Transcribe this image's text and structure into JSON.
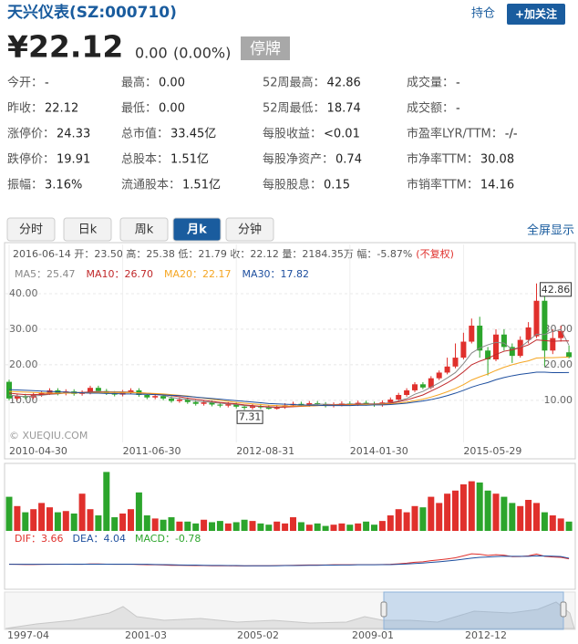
{
  "header": {
    "title": "天兴仪表(SZ:000710)",
    "hold": "持仓",
    "follow": "+加关注",
    "price": "¥22.12",
    "change": "0.00",
    "change_pct": "(0.00%)",
    "status": "停牌"
  },
  "stats": [
    [
      {
        "label": "今开：",
        "value": "-"
      },
      {
        "label": "最高：",
        "value": "0.00"
      },
      {
        "label": "52周最高：",
        "value": "42.86"
      },
      {
        "label": "成交量：",
        "value": "-"
      }
    ],
    [
      {
        "label": "昨收：",
        "value": "22.12"
      },
      {
        "label": "最低：",
        "value": "0.00"
      },
      {
        "label": "52周最低：",
        "value": "18.74"
      },
      {
        "label": "成交额：",
        "value": "-"
      }
    ],
    [
      {
        "label": "涨停价：",
        "value": "24.33"
      },
      {
        "label": "总市值：",
        "value": "33.45亿"
      },
      {
        "label": "每股收益：",
        "value": "<0.01"
      },
      {
        "label": "市盈率LYR/TTM：",
        "value": "-/-"
      }
    ],
    [
      {
        "label": "跌停价：",
        "value": "19.91"
      },
      {
        "label": "总股本：",
        "value": "1.51亿"
      },
      {
        "label": "每股净资产：",
        "value": "0.74"
      },
      {
        "label": "市净率TTM：",
        "value": "30.08"
      }
    ],
    [
      {
        "label": "振幅：",
        "value": "3.16%"
      },
      {
        "label": "流通股本：",
        "value": "1.51亿"
      },
      {
        "label": "每股股息：",
        "value": "0.15"
      },
      {
        "label": "市销率TTM：",
        "value": "14.16"
      }
    ]
  ],
  "tabs": {
    "items": [
      "分时",
      "日k",
      "周k",
      "月k",
      "分钟"
    ],
    "active": 3,
    "fullscreen": "全屏显示"
  },
  "chart_data": [
    {
      "type": "candlestick",
      "quote": "2016-06-14 开：23.50 高：25.38 低：21.79 收：22.12 量：2184.35万 幅：-5.87%",
      "adjust": "(不复权)",
      "watermark": "© XUEQIU.COM",
      "up_color": "#e0302c",
      "down_color": "#2ca52c",
      "categories": [
        "2010-04-30",
        null,
        null,
        null,
        null,
        null,
        null,
        null,
        null,
        null,
        null,
        null,
        null,
        null,
        "2011-06-30",
        null,
        null,
        null,
        null,
        null,
        null,
        null,
        null,
        null,
        null,
        null,
        null,
        null,
        "2012-08-31",
        null,
        null,
        null,
        null,
        null,
        null,
        null,
        null,
        null,
        null,
        null,
        null,
        null,
        "2014-01-30",
        null,
        null,
        null,
        null,
        null,
        null,
        null,
        null,
        null,
        null,
        null,
        null,
        null,
        "2015-05-29",
        null,
        null,
        null,
        null,
        null,
        null,
        null,
        null,
        null,
        null,
        null,
        null,
        null
      ],
      "open": [
        15.2,
        10.5,
        11.2,
        10.8,
        11.5,
        12.0,
        12.8,
        11.9,
        12.5,
        11.8,
        12.2,
        13.5,
        12.6,
        12.0,
        11.6,
        12.3,
        12.8,
        11.5,
        10.8,
        11.2,
        10.5,
        9.8,
        10.2,
        9.5,
        9.0,
        9.4,
        8.8,
        8.5,
        8.9,
        8.2,
        7.9,
        8.4,
        8.0,
        7.6,
        8.1,
        8.6,
        9.0,
        8.7,
        9.2,
        8.9,
        8.5,
        8.8,
        9.1,
        8.9,
        9.3,
        9.0,
        8.7,
        9.4,
        10.2,
        11.5,
        12.8,
        14.5,
        13.6,
        16.2,
        17.8,
        19.5,
        22.0,
        26.5,
        31.0,
        24.0,
        21.5,
        28.5,
        25.0,
        22.5,
        27.0,
        28.0,
        38.0,
        24.0,
        27.5,
        23.5
      ],
      "high": [
        15.8,
        11.8,
        11.8,
        12.1,
        12.6,
        13.4,
        13.4,
        13.1,
        13.1,
        12.8,
        14.1,
        14.1,
        13.2,
        12.6,
        12.9,
        13.4,
        13.4,
        12.1,
        11.8,
        11.8,
        11.1,
        10.8,
        10.8,
        10.1,
        10.0,
        10.0,
        9.4,
        9.5,
        9.5,
        8.8,
        9.0,
        9.0,
        8.6,
        8.7,
        9.2,
        9.6,
        9.6,
        9.8,
        9.8,
        9.5,
        9.4,
        9.7,
        9.7,
        9.9,
        9.9,
        9.6,
        10.0,
        10.8,
        12.1,
        13.4,
        15.1,
        15.1,
        16.8,
        18.4,
        22.0,
        26.0,
        29.0,
        33.0,
        33.5,
        25.0,
        30.0,
        30.0,
        26.0,
        28.0,
        32.0,
        42.86,
        40.0,
        30.0,
        31.0,
        25.38
      ],
      "low": [
        10.0,
        10.0,
        10.3,
        10.3,
        11.0,
        11.5,
        11.4,
        11.4,
        11.3,
        11.3,
        11.7,
        12.1,
        11.5,
        11.1,
        11.1,
        11.8,
        11.0,
        10.3,
        10.3,
        10.0,
        9.3,
        9.3,
        9.0,
        8.5,
        8.5,
        8.3,
        8.0,
        8.0,
        7.7,
        7.31,
        7.4,
        7.5,
        7.4,
        7.4,
        7.6,
        8.1,
        8.2,
        8.2,
        8.4,
        8.0,
        8.0,
        8.3,
        8.4,
        8.4,
        8.5,
        8.2,
        8.2,
        8.9,
        9.7,
        11.0,
        12.3,
        13.1,
        13.1,
        15.7,
        17.3,
        19.0,
        21.5,
        26.0,
        22.0,
        17.0,
        21.0,
        24.0,
        20.5,
        22.0,
        26.0,
        27.5,
        19.5,
        23.0,
        26.5,
        21.79
      ],
      "close": [
        10.5,
        11.2,
        10.8,
        11.5,
        12.0,
        12.8,
        11.9,
        12.5,
        11.8,
        12.2,
        13.5,
        12.6,
        12.0,
        11.6,
        12.3,
        12.8,
        11.5,
        10.8,
        11.2,
        10.5,
        9.8,
        10.2,
        9.5,
        9.0,
        9.4,
        8.8,
        8.5,
        8.9,
        8.2,
        7.9,
        8.4,
        8.0,
        7.6,
        8.1,
        8.6,
        9.0,
        8.7,
        9.2,
        8.9,
        8.5,
        8.8,
        9.1,
        8.9,
        9.3,
        9.0,
        8.7,
        9.4,
        10.2,
        11.5,
        12.8,
        14.5,
        13.6,
        16.2,
        17.8,
        19.5,
        22.0,
        26.5,
        31.0,
        24.0,
        21.5,
        28.5,
        25.0,
        22.5,
        27.0,
        30.5,
        38.0,
        24.0,
        27.5,
        29.5,
        22.12
      ],
      "series": [
        {
          "name": "MA5：25.47",
          "color": "#888888",
          "values": [
            11.5,
            11.2,
            11.0,
            11.2,
            11.4,
            11.7,
            11.8,
            12.1,
            12.2,
            12.2,
            12.4,
            12.5,
            12.4,
            12.4,
            12.4,
            12.3,
            12.0,
            11.8,
            11.7,
            11.4,
            10.8,
            10.5,
            10.2,
            9.8,
            9.6,
            9.4,
            9.2,
            9.0,
            8.8,
            8.5,
            8.4,
            8.3,
            8.0,
            8.0,
            8.1,
            8.3,
            8.6,
            8.7,
            8.9,
            8.9,
            8.8,
            8.9,
            8.9,
            9.0,
            9.0,
            9.0,
            9.1,
            9.3,
            9.8,
            10.5,
            11.7,
            12.5,
            13.7,
            14.9,
            16.3,
            17.8,
            20.3,
            23.3,
            24.7,
            25.6,
            26.3,
            26.1,
            24.3,
            24.9,
            26.7,
            28.6,
            28.5,
            29.4,
            29.9,
            25.47
          ]
        },
        {
          "name": "MA10：26.70",
          "color": "#c0282a",
          "values": [
            12,
            11.8,
            11.6,
            11.6,
            11.7,
            11.8,
            11.9,
            12.0,
            12.1,
            12.2,
            12.3,
            12.3,
            12.3,
            12.2,
            12.2,
            12.2,
            12.1,
            12.0,
            11.8,
            11.6,
            11.3,
            11.0,
            10.6,
            10.3,
            10.0,
            9.7,
            9.4,
            9.2,
            9.0,
            8.7,
            8.5,
            8.3,
            8.2,
            8.1,
            8.1,
            8.2,
            8.3,
            8.4,
            8.5,
            8.6,
            8.7,
            8.8,
            8.8,
            8.9,
            8.9,
            8.9,
            9.0,
            9.2,
            9.6,
            10.1,
            10.8,
            11.5,
            12.6,
            13.7,
            14.9,
            16.3,
            18.0,
            20.0,
            21.0,
            21.8,
            22.9,
            23.8,
            24.2,
            24.8,
            25.6,
            27.0,
            26.8,
            26.6,
            26.7,
            26.7
          ]
        },
        {
          "name": "MA20：22.17",
          "color": "#f5a623",
          "values": [
            12.5,
            12.4,
            12.3,
            12.2,
            12.1,
            12.0,
            12.0,
            12.0,
            12.0,
            12.1,
            12.1,
            12.2,
            12.2,
            12.2,
            12.2,
            12.2,
            12.1,
            12.0,
            11.9,
            11.8,
            11.6,
            11.4,
            11.2,
            10.9,
            10.6,
            10.3,
            10.0,
            9.7,
            9.4,
            9.2,
            9.0,
            8.8,
            8.6,
            8.5,
            8.4,
            8.4,
            8.4,
            8.4,
            8.5,
            8.5,
            8.6,
            8.6,
            8.7,
            8.7,
            8.8,
            8.8,
            8.9,
            9.0,
            9.2,
            9.5,
            9.9,
            10.3,
            10.9,
            11.6,
            12.4,
            13.3,
            14.4,
            15.7,
            16.6,
            17.4,
            18.4,
            19.3,
            20.0,
            20.6,
            21.1,
            21.9,
            22.0,
            22.0,
            22.1,
            22.17
          ]
        },
        {
          "name": "MA30：17.82",
          "color": "#1d4e9e",
          "values": [
            13,
            12.9,
            12.8,
            12.7,
            12.6,
            12.5,
            12.4,
            12.3,
            12.2,
            12.1,
            12.0,
            12.0,
            11.9,
            11.9,
            11.8,
            11.8,
            11.7,
            11.7,
            11.6,
            11.5,
            11.4,
            11.3,
            11.1,
            10.9,
            10.7,
            10.5,
            10.3,
            10.1,
            9.9,
            9.7,
            9.5,
            9.3,
            9.1,
            9.0,
            8.9,
            8.8,
            8.7,
            8.6,
            8.6,
            8.5,
            8.5,
            8.5,
            8.5,
            8.6,
            8.6,
            8.7,
            8.7,
            8.8,
            9.0,
            9.2,
            9.5,
            9.8,
            10.2,
            10.7,
            11.3,
            12.0,
            12.8,
            13.7,
            14.4,
            15.0,
            15.8,
            16.4,
            16.9,
            17.3,
            17.6,
            17.9,
            17.9,
            17.8,
            17.8,
            17.82
          ]
        }
      ],
      "ylim": [
        2,
        48.2
      ],
      "yticks": [
        {
          "value": 10,
          "label": "10.00"
        },
        {
          "value": 20,
          "label": "20.00"
        },
        {
          "value": 30,
          "label": "30.00"
        },
        {
          "value": 40,
          "label": "40.00"
        }
      ],
      "y2lim": [
        2,
        48.2
      ],
      "y2ticks": [
        {
          "value": 10,
          "label": "10.00"
        },
        {
          "value": 20,
          "label": "20.00"
        },
        {
          "value": 30,
          "label": "30.00"
        }
      ]
    },
    {
      "type": "volume",
      "ylim": [
        0,
        100
      ],
      "values": [
        55,
        40,
        30,
        35,
        45,
        38,
        30,
        32,
        28,
        60,
        35,
        25,
        95,
        22,
        28,
        35,
        62,
        25,
        20,
        18,
        22,
        15,
        15,
        12,
        18,
        14,
        16,
        12,
        14,
        18,
        16,
        12,
        10,
        15,
        12,
        22,
        14,
        10,
        12,
        8,
        10,
        12,
        10,
        12,
        15,
        10,
        16,
        25,
        35,
        30,
        40,
        38,
        55,
        45,
        60,
        65,
        75,
        80,
        78,
        65,
        60,
        55,
        45,
        40,
        50,
        45,
        30,
        25,
        20,
        15
      ]
    },
    {
      "type": "line",
      "macd_label": "MACD：-0.78",
      "ylim": [
        -12,
        12
      ],
      "series": [
        {
          "name": "DIF：3.66",
          "color": "#e0302c",
          "values": [
            0.3,
            0.2,
            0.1,
            0.1,
            0.2,
            0.3,
            0.3,
            0.3,
            0.2,
            0.2,
            0.4,
            0.4,
            0.3,
            0.2,
            0.2,
            0.3,
            0.1,
            -0.1,
            -0.1,
            -0.2,
            -0.4,
            -0.4,
            -0.5,
            -0.6,
            -0.6,
            -0.7,
            -0.7,
            -0.7,
            -0.8,
            -0.8,
            -0.7,
            -0.7,
            -0.7,
            -0.6,
            -0.5,
            -0.4,
            -0.3,
            -0.2,
            -0.2,
            -0.2,
            -0.1,
            -0.1,
            -0.1,
            0,
            0,
            0,
            0.1,
            0.2,
            0.5,
            0.9,
            1.5,
            1.8,
            2.5,
            3.0,
            3.6,
            4.3,
            5.5,
            6.8,
            6.5,
            5.8,
            6.2,
            5.9,
            5.0,
            5.1,
            5.5,
            6.6,
            5.2,
            4.8,
            4.6,
            3.66
          ]
        },
        {
          "name": "DEA：4.04",
          "color": "#1d4e9e",
          "values": [
            0.2,
            0.2,
            0.2,
            0.2,
            0.2,
            0.2,
            0.2,
            0.3,
            0.3,
            0.3,
            0.3,
            0.3,
            0.3,
            0.3,
            0.3,
            0.3,
            0.2,
            0.2,
            0.1,
            0,
            -0.1,
            -0.2,
            -0.3,
            -0.3,
            -0.4,
            -0.5,
            -0.5,
            -0.6,
            -0.6,
            -0.7,
            -0.7,
            -0.7,
            -0.7,
            -0.7,
            -0.6,
            -0.6,
            -0.5,
            -0.4,
            -0.4,
            -0.3,
            -0.3,
            -0.2,
            -0.2,
            -0.1,
            -0.1,
            -0.1,
            0,
            0,
            0.2,
            0.4,
            0.7,
            1.0,
            1.4,
            1.8,
            2.3,
            2.8,
            3.4,
            4.1,
            4.6,
            4.8,
            5.1,
            5.3,
            5.2,
            5.2,
            5.2,
            5.5,
            5.4,
            5.3,
            5.1,
            4.04
          ]
        }
      ]
    },
    {
      "type": "navigator",
      "labels": [
        "1997-04",
        "2001-03",
        "2005-02",
        "2009-01",
        "2012-12"
      ]
    }
  ]
}
